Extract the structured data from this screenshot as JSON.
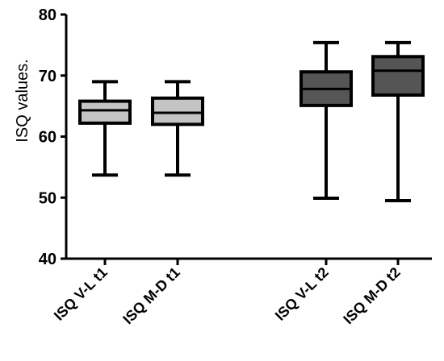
{
  "chart_data": {
    "type": "box",
    "ylabel": "ISQ values.",
    "ylim": [
      40,
      80
    ],
    "yticks": [
      40,
      50,
      60,
      70,
      80
    ],
    "grid": false,
    "categories": [
      "ISQ V-L t1",
      "ISQ M-D t1",
      "ISQ V-L t2",
      "ISQ M-D t2"
    ],
    "boxes": [
      {
        "category": "ISQ V-L t1",
        "min": 53.7,
        "q1": 62.2,
        "median": 64.3,
        "q3": 65.8,
        "max": 69.0,
        "color": "#c4c4c4"
      },
      {
        "category": "ISQ M-D t1",
        "min": 53.7,
        "q1": 62.0,
        "median": 63.9,
        "q3": 66.3,
        "max": 69.0,
        "color": "#c4c4c4"
      },
      {
        "category": "ISQ V-L t2",
        "min": 49.9,
        "q1": 65.1,
        "median": 67.8,
        "q3": 70.6,
        "max": 75.4,
        "color": "#555555"
      },
      {
        "category": "ISQ M-D t2",
        "min": 49.5,
        "q1": 66.8,
        "median": 70.8,
        "q3": 73.1,
        "max": 75.4,
        "color": "#555555"
      }
    ]
  }
}
